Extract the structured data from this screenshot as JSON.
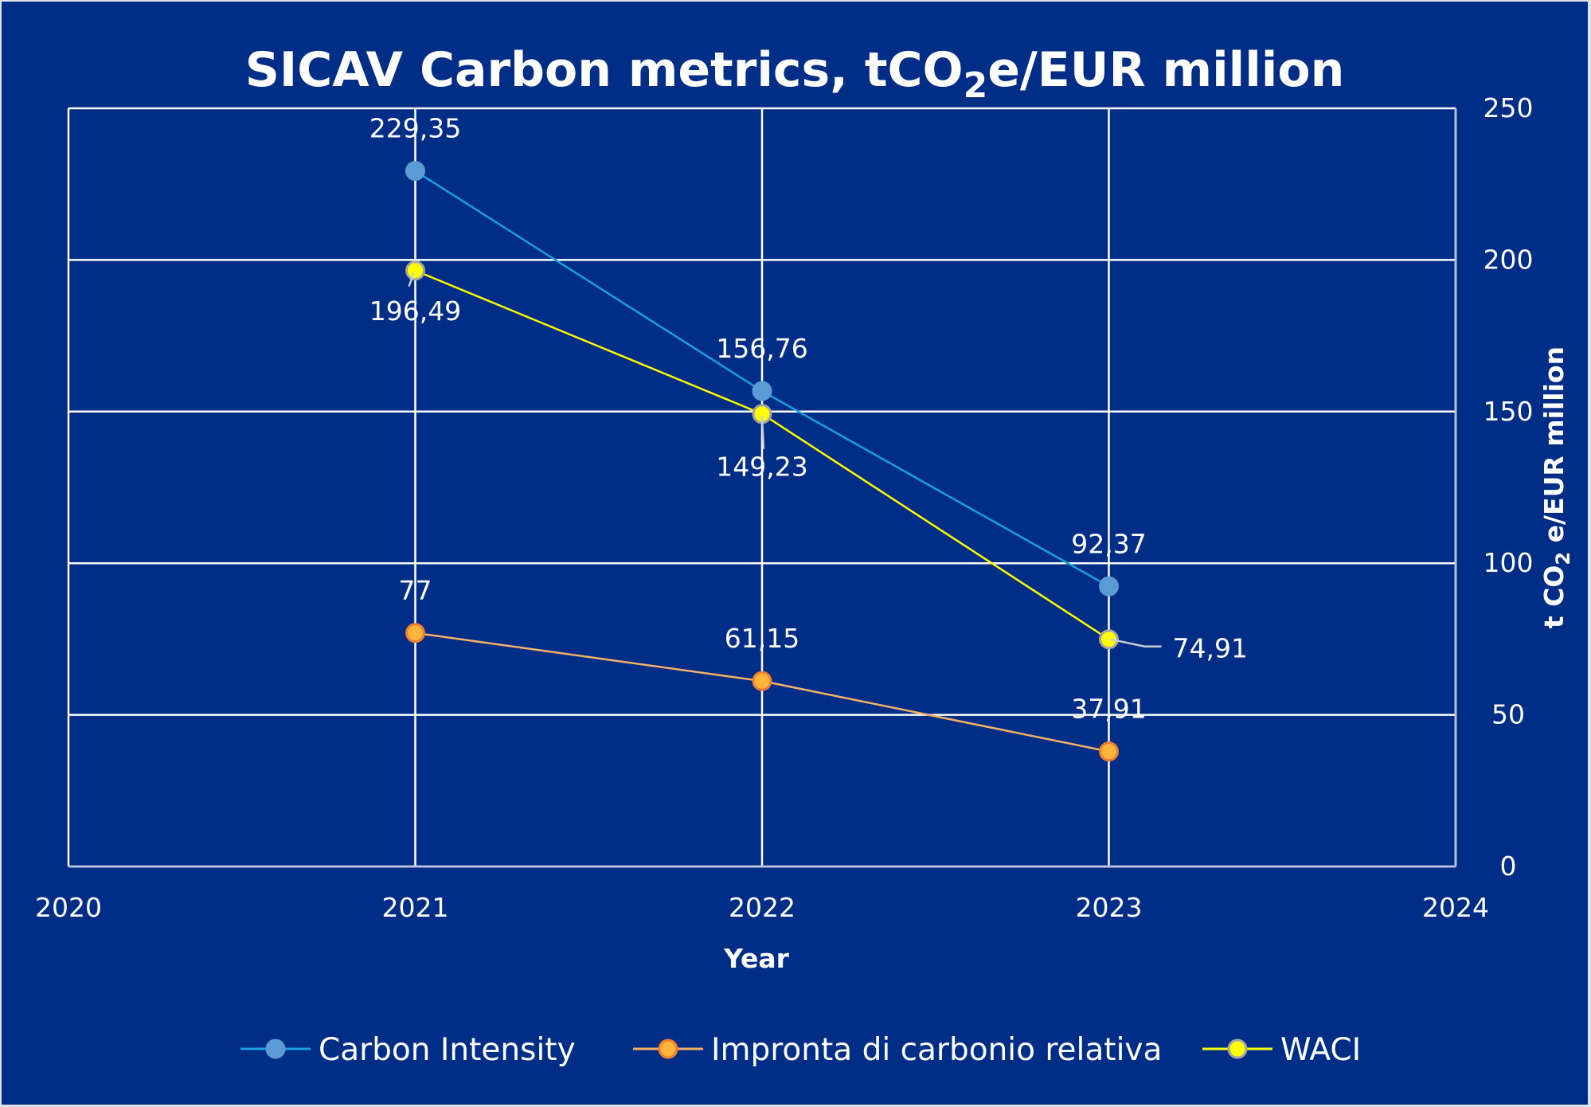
{
  "chart_data": {
    "type": "line",
    "title": "SICAV Carbon metrics, tCO",
    "title_sub": "2",
    "title_tail": "e/EUR million",
    "xlabel": "Year",
    "ylabel_pre": "t CO",
    "ylabel_sub": "2",
    "ylabel_post": " e/EUR million",
    "xlim": [
      2020,
      2024
    ],
    "ylim": [
      0,
      250
    ],
    "x_ticks": [
      "2020",
      "2021",
      "2022",
      "2023",
      "2024"
    ],
    "y_ticks": [
      "0",
      "50",
      "100",
      "150",
      "200",
      "250"
    ],
    "y_axis_side": "right",
    "grid": true,
    "legend_position": "bottom",
    "x": [
      2021,
      2022,
      2023
    ],
    "series": [
      {
        "name": "Carbon Intensity",
        "values": [
          229.35,
          156.76,
          92.37
        ],
        "labels": [
          "229,35",
          "156,76",
          "92,37"
        ],
        "line_color": "#1b9de2",
        "marker_color": "#5b9bd5",
        "marker_edge": "#5b9bd5"
      },
      {
        "name": "Impronta di carbonio relativa",
        "values": [
          77,
          61.15,
          37.91
        ],
        "labels": [
          "77",
          "61,15",
          "37,91"
        ],
        "line_color": "#f4b167",
        "marker_color": "#ffb43c",
        "marker_edge": "#ed7d31"
      },
      {
        "name": "WACI",
        "values": [
          196.49,
          149.23,
          74.91
        ],
        "labels": [
          "196,49",
          "149,23",
          "74,91"
        ],
        "line_color": "#ffff00",
        "marker_color": "#ffff00",
        "marker_edge": "#a5a5a5"
      }
    ]
  },
  "colors": {
    "background": "#002e86",
    "grid": "#ffffff",
    "axis": "#b4c0dc",
    "leader": "#c8ccd4"
  }
}
